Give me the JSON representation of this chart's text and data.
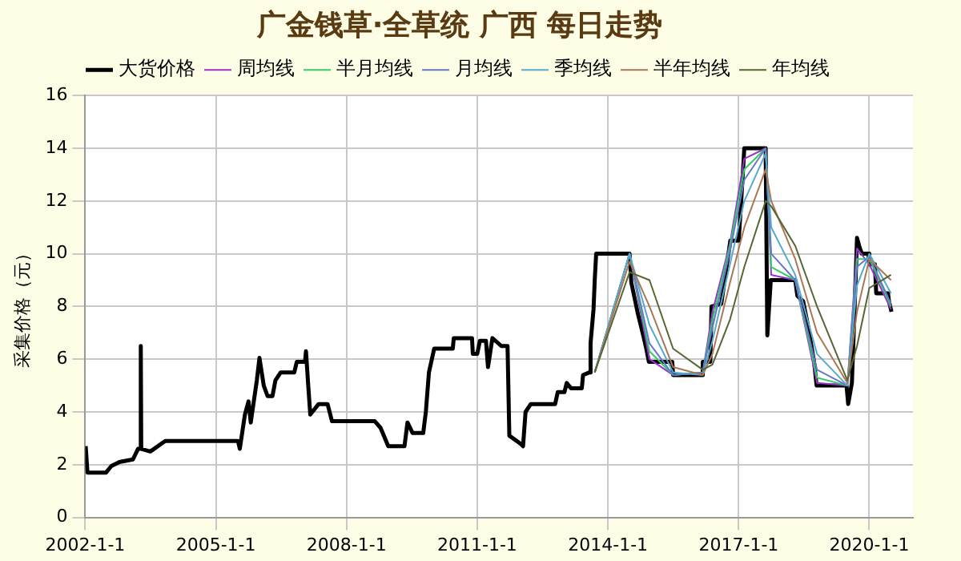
{
  "chart_data": {
    "type": "line",
    "title": "广金钱草·全草统 广西 每日走势",
    "ylabel": "采集价格（元）",
    "xlim": [
      "2002-01-01",
      "2021-01-01"
    ],
    "xticks": [
      {
        "value": "2002-01-01",
        "label": "2002-1-1"
      },
      {
        "value": "2005-01-01",
        "label": "2005-1-1"
      },
      {
        "value": "2008-01-01",
        "label": "2008-1-1"
      },
      {
        "value": "2011-01-01",
        "label": "2011-1-1"
      },
      {
        "value": "2014-01-01",
        "label": "2014-1-1"
      },
      {
        "value": "2017-01-01",
        "label": "2017-1-1"
      },
      {
        "value": "2020-01-01",
        "label": "2020-1-1"
      }
    ],
    "ylim": [
      0,
      16
    ],
    "yticks": [
      0,
      2,
      4,
      6,
      8,
      10,
      12,
      14,
      16
    ],
    "grid": true,
    "legend": "top",
    "marker": "none",
    "series": [
      {
        "name": "大货价格",
        "color": "#000000",
        "x": [
          "2002-01-05",
          "2002-01-20",
          "2002-06-25",
          "2002-08-08",
          "2002-10-15",
          "2003-02-05",
          "2003-03-20",
          "2003-04-08",
          "2003-04-12",
          "2003-04-16",
          "2003-07-01",
          "2003-11-03",
          "2005-07-05",
          "2005-07-20",
          "2005-09-01",
          "2005-10-01",
          "2005-10-20",
          "2005-12-10",
          "2006-01-01",
          "2006-02-06",
          "2006-03-10",
          "2006-04-20",
          "2006-05-15",
          "2006-06-28",
          "2006-10-20",
          "2006-11-10",
          "2007-01-18",
          "2007-01-26",
          "2007-02-14",
          "2007-03-03",
          "2007-05-12",
          "2007-07-26",
          "2007-09-01",
          "2008-08-25",
          "2008-10-12",
          "2008-12-16",
          "2009-05-01",
          "2009-05-26",
          "2009-07-08",
          "2009-10-05",
          "2009-10-27",
          "2009-11-22",
          "2010-01-05",
          "2010-06-10",
          "2010-06-18",
          "2010-11-18",
          "2010-11-25",
          "2011-01-01",
          "2011-01-23",
          "2011-03-15",
          "2011-04-01",
          "2011-05-08",
          "2011-07-22",
          "2011-09-12",
          "2011-09-27",
          "2011-12-28",
          "2012-01-20",
          "2012-02-10",
          "2012-03-25",
          "2012-10-15",
          "2012-11-06",
          "2013-01-01",
          "2013-01-20",
          "2013-02-25",
          "2013-05-27",
          "2013-06-06",
          "2013-07-30",
          "2013-08-08",
          "2013-09-02",
          "2013-09-12",
          "2013-09-24",
          "2014-07-01",
          "2014-07-16",
          "2014-09-10",
          "2014-10-24",
          "2014-11-18",
          "2014-12-10",
          "2015-06-24",
          "2015-07-01",
          "2016-02-28",
          "2016-03-06",
          "2016-05-08",
          "2016-05-18",
          "2016-08-08",
          "2016-10-23",
          "2017-01-01",
          "2017-01-22",
          "2017-02-17",
          "2017-08-15",
          "2017-08-29",
          "2017-09-27",
          "2018-04-20",
          "2018-05-08",
          "2018-06-25",
          "2018-08-08",
          "2018-09-25",
          "2018-10-16",
          "2019-06-24",
          "2019-07-08",
          "2019-08-08",
          "2019-08-29",
          "2019-09-20",
          "2019-10-08",
          "2019-10-30",
          "2019-12-24",
          "2020-01-01",
          "2020-02-17",
          "2020-02-28",
          "2020-06-06",
          "2020-06-14",
          "2020-07-05"
        ],
        "values": [
          2.7,
          1.7,
          1.7,
          1.95,
          2.1,
          2.2,
          2.6,
          2.6,
          6.5,
          2.6,
          2.5,
          2.9,
          2.9,
          2.6,
          3.9,
          4.4,
          3.6,
          5.2,
          6.05,
          5.0,
          4.6,
          4.6,
          5.2,
          5.5,
          5.5,
          5.9,
          5.9,
          6.3,
          5.0,
          3.9,
          4.3,
          4.3,
          3.65,
          3.65,
          3.4,
          2.7,
          2.7,
          3.6,
          3.2,
          3.2,
          4.0,
          5.5,
          6.4,
          6.4,
          6.8,
          6.8,
          6.2,
          6.2,
          6.7,
          6.7,
          5.7,
          6.8,
          6.5,
          6.5,
          3.1,
          2.8,
          2.7,
          4.0,
          4.3,
          4.3,
          4.75,
          4.75,
          5.1,
          4.9,
          4.9,
          5.4,
          5.5,
          6.6,
          7.9,
          9.0,
          10.0,
          10.0,
          8.9,
          7.7,
          6.9,
          6.4,
          5.9,
          5.9,
          5.4,
          5.4,
          5.9,
          5.9,
          8.0,
          8.1,
          10.5,
          10.5,
          12.0,
          14.0,
          14.0,
          6.9,
          9.0,
          9.0,
          8.4,
          8.2,
          7.2,
          5.9,
          5.0,
          5.0,
          4.3,
          5.1,
          7.7,
          10.6,
          10.3,
          10.0,
          10.0,
          9.6,
          9.6,
          8.5,
          8.5,
          8.2,
          7.8
        ]
      },
      {
        "name": "周均线",
        "color": "#9933cc",
        "x": [
          "2013-09-12",
          "2014-07-01",
          "2014-12-15",
          "2015-07-01",
          "2016-03-06",
          "2016-05-26",
          "2016-10-20",
          "2017-02-17",
          "2017-08-15",
          "2017-10-01",
          "2018-04-20",
          "2018-10-20",
          "2019-07-01",
          "2019-09-20",
          "2020-01-01",
          "2020-07-01"
        ],
        "values": [
          5.5,
          10.0,
          6.0,
          5.4,
          5.5,
          7.8,
          10.4,
          13.6,
          14.0,
          9.2,
          9.0,
          5.1,
          5.0,
          10.2,
          9.6,
          7.9
        ]
      },
      {
        "name": "半月均线",
        "color": "#33cc66",
        "x": [
          "2013-09-12",
          "2014-07-01",
          "2014-12-15",
          "2015-07-01",
          "2016-03-06",
          "2016-05-26",
          "2016-10-20",
          "2017-02-17",
          "2017-08-15",
          "2017-10-01",
          "2018-04-20",
          "2018-10-20",
          "2019-07-01",
          "2019-09-20",
          "2020-01-01",
          "2020-07-01"
        ],
        "values": [
          5.5,
          10.0,
          6.3,
          5.4,
          5.5,
          7.5,
          10.3,
          13.2,
          14.0,
          9.5,
          9.0,
          5.3,
          5.0,
          9.8,
          9.8,
          8.0
        ]
      },
      {
        "name": "月均线",
        "color": "#6677cc",
        "x": [
          "2013-09-12",
          "2014-07-01",
          "2014-12-15",
          "2015-07-01",
          "2016-03-06",
          "2016-05-26",
          "2016-10-20",
          "2017-02-17",
          "2017-08-15",
          "2017-10-01",
          "2018-04-20",
          "2018-10-20",
          "2019-07-01",
          "2019-09-20",
          "2020-01-01",
          "2020-07-01"
        ],
        "values": [
          5.5,
          10.0,
          6.6,
          5.4,
          5.5,
          7.2,
          10.1,
          12.8,
          14.0,
          10.0,
          9.0,
          5.6,
          5.0,
          9.5,
          9.9,
          8.1
        ]
      },
      {
        "name": "季均线",
        "color": "#55aacc",
        "x": [
          "2013-09-12",
          "2014-07-01",
          "2014-12-15",
          "2015-07-01",
          "2016-03-06",
          "2016-05-26",
          "2016-10-20",
          "2017-02-17",
          "2017-08-15",
          "2017-10-01",
          "2018-04-20",
          "2018-10-20",
          "2019-07-01",
          "2019-09-20",
          "2020-01-01",
          "2020-07-01"
        ],
        "values": [
          5.5,
          10.0,
          7.3,
          5.5,
          5.4,
          6.7,
          9.6,
          12.0,
          13.8,
          11.0,
          9.2,
          6.2,
          5.0,
          8.8,
          10.0,
          8.5
        ]
      },
      {
        "name": "半年均线",
        "color": "#aa7755",
        "x": [
          "2013-09-12",
          "2014-07-01",
          "2014-12-15",
          "2015-07-01",
          "2016-03-06",
          "2016-05-26",
          "2016-10-20",
          "2017-02-17",
          "2017-08-15",
          "2017-10-01",
          "2018-04-20",
          "2018-10-20",
          "2019-07-01",
          "2019-09-20",
          "2020-01-01",
          "2020-07-01"
        ],
        "values": [
          5.5,
          9.7,
          8.0,
          5.7,
          5.4,
          6.2,
          8.9,
          11.0,
          13.2,
          12.0,
          9.8,
          7.0,
          5.1,
          7.8,
          9.8,
          9.0
        ]
      },
      {
        "name": "年均线",
        "color": "#556633",
        "x": [
          "2013-09-12",
          "2014-07-01",
          "2014-12-15",
          "2015-07-01",
          "2016-03-06",
          "2016-05-26",
          "2016-10-20",
          "2017-02-17",
          "2017-08-15",
          "2017-10-01",
          "2018-04-20",
          "2018-10-20",
          "2019-07-01",
          "2019-09-20",
          "2020-01-01",
          "2020-07-01"
        ],
        "values": [
          5.5,
          9.3,
          9.0,
          6.4,
          5.6,
          5.8,
          7.5,
          9.5,
          12.0,
          11.8,
          10.3,
          8.0,
          5.2,
          6.5,
          8.7,
          9.2
        ]
      }
    ]
  }
}
